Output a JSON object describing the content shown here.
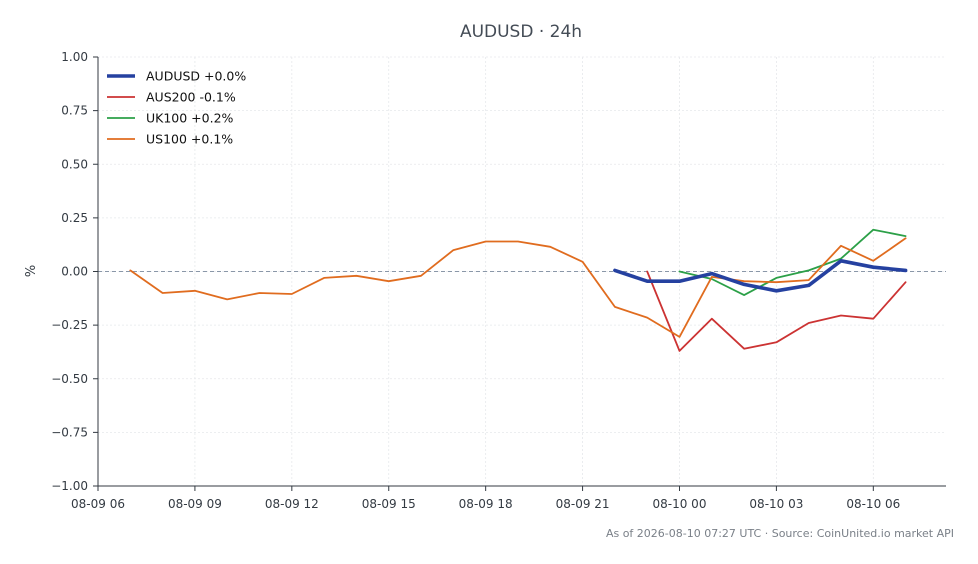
{
  "chart_data": {
    "type": "line",
    "title": "AUDUSD · 24h",
    "xlabel": "",
    "ylabel": "%",
    "ylim": [
      -1.0,
      1.0
    ],
    "xlim": [
      "08-09 06:00",
      "08-10 08:15"
    ],
    "y_ticks": [
      1.0,
      0.75,
      0.5,
      0.25,
      0.0,
      -0.25,
      -0.5,
      -0.75,
      -1.0
    ],
    "y_tick_labels": [
      "1.00",
      "0.75",
      "0.50",
      "0.25",
      "0.00",
      "−0.25",
      "−0.50",
      "−0.75",
      "−1.00"
    ],
    "x_ticks": [
      "08-09 06:00",
      "08-09 09:00",
      "08-09 12:00",
      "08-09 15:00",
      "08-09 18:00",
      "08-09 21:00",
      "08-10 00:00",
      "08-10 03:00",
      "08-10 06:00"
    ],
    "x_tick_labels": [
      "08-09 06",
      "08-09 09",
      "08-09 12",
      "08-09 15",
      "08-09 18",
      "08-09 21",
      "08-10 00",
      "08-10 03",
      "08-10 06"
    ],
    "grid": true,
    "reference_line": 0.0,
    "legend_position": "top-left",
    "series": [
      {
        "name": "AUDUSD +0.0%",
        "color": "#2541a0",
        "emphasis": true,
        "x": [
          "08-09 22:00",
          "08-09 23:00",
          "08-10 00:00",
          "08-10 01:00",
          "08-10 02:00",
          "08-10 03:00",
          "08-10 04:00",
          "08-10 05:00",
          "08-10 06:00",
          "08-10 07:00"
        ],
        "values": [
          0.005,
          -0.045,
          -0.045,
          -0.01,
          -0.06,
          -0.09,
          -0.065,
          0.05,
          0.02,
          0.005
        ]
      },
      {
        "name": "AUS200 -0.1%",
        "color": "#cc3333",
        "emphasis": false,
        "x": [
          "08-09 23:00",
          "08-10 00:00",
          "08-10 01:00",
          "08-10 02:00",
          "08-10 03:00",
          "08-10 04:00",
          "08-10 05:00",
          "08-10 06:00",
          "08-10 07:00"
        ],
        "values": [
          0.0,
          -0.37,
          -0.22,
          -0.36,
          -0.33,
          -0.24,
          -0.205,
          -0.22,
          -0.05
        ]
      },
      {
        "name": "UK100 +0.2%",
        "color": "#2ca048",
        "emphasis": false,
        "x": [
          "08-10 00:00",
          "08-10 01:00",
          "08-10 02:00",
          "08-10 03:00",
          "08-10 04:00",
          "08-10 05:00",
          "08-10 06:00",
          "08-10 07:00"
        ],
        "values": [
          0.0,
          -0.035,
          -0.11,
          -0.03,
          0.005,
          0.06,
          0.195,
          0.165
        ]
      },
      {
        "name": "US100 +0.1%",
        "color": "#e06c1f",
        "emphasis": false,
        "x": [
          "08-09 07:00",
          "08-09 08:00",
          "08-09 09:00",
          "08-09 10:00",
          "08-09 11:00",
          "08-09 12:00",
          "08-09 13:00",
          "08-09 14:00",
          "08-09 15:00",
          "08-09 16:00",
          "08-09 17:00",
          "08-09 18:00",
          "08-09 19:00",
          "08-09 20:00",
          "08-09 21:00",
          "08-09 22:00",
          "08-09 23:00",
          "08-10 00:00",
          "08-10 01:00",
          "08-10 02:00",
          "08-10 03:00",
          "08-10 04:00",
          "08-10 05:00",
          "08-10 06:00",
          "08-10 07:00"
        ],
        "values": [
          0.005,
          -0.1,
          -0.09,
          -0.13,
          -0.1,
          -0.105,
          -0.03,
          -0.02,
          -0.045,
          -0.02,
          0.1,
          0.14,
          0.14,
          0.115,
          0.045,
          -0.165,
          -0.215,
          -0.305,
          -0.025,
          -0.045,
          -0.05,
          -0.04,
          0.12,
          0.05,
          0.155
        ]
      }
    ]
  },
  "footer": {
    "note": "As of 2026-08-10 07:27 UTC · Source: CoinUnited.io market API"
  }
}
